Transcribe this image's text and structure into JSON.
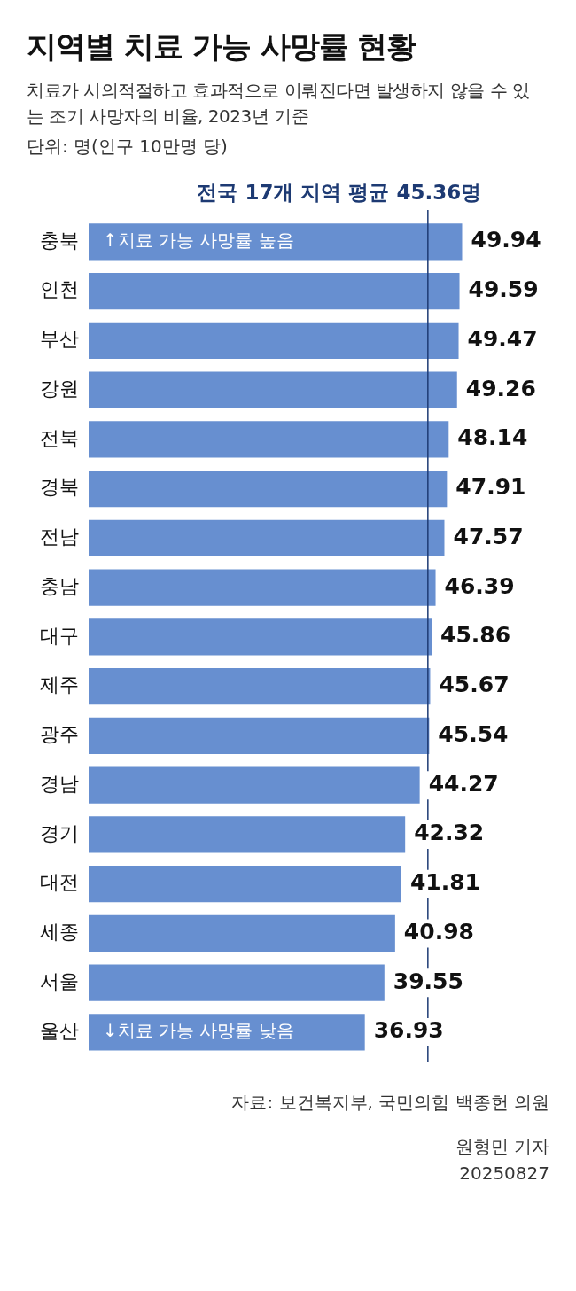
{
  "chart_data": {
    "type": "bar",
    "orientation": "horizontal",
    "title": "지역별 치료 가능 사망률 현황",
    "subtitle": "치료가 시의적절하고 효과적으로 이뤄진다면 발생하지 않을 수 있는 조기 사망자의 비율, 2023년 기준",
    "categories": [
      "충북",
      "인천",
      "부산",
      "강원",
      "전북",
      "경북",
      "전남",
      "충남",
      "대구",
      "제주",
      "광주",
      "경남",
      "경기",
      "대전",
      "세종",
      "서울",
      "울산"
    ],
    "values": [
      49.94,
      49.59,
      49.47,
      49.26,
      48.14,
      47.91,
      47.57,
      46.39,
      45.86,
      45.67,
      45.54,
      44.27,
      42.32,
      41.81,
      40.98,
      39.55,
      36.93
    ],
    "color": "#678fd0",
    "tick_labels": "y",
    "grid": false,
    "legend": false,
    "data_labels": true,
    "ref_lines": [
      {
        "axis": "x",
        "value": 45.36,
        "label": "전국 17개 지역 평균 45.36명",
        "color": "#1d3a73"
      }
    ],
    "annotations": [
      "단위: 명(인구 10만명 당)",
      {
        "text": "↑치료 가능 사망률 높음",
        "y": "충북"
      },
      {
        "text": "↓치료 가능 사망률 낮음",
        "y": "울산"
      },
      "자료: 보건복지부, 국민의힘 백종헌 의원",
      "원형민 기자",
      "20250827"
    ]
  }
}
